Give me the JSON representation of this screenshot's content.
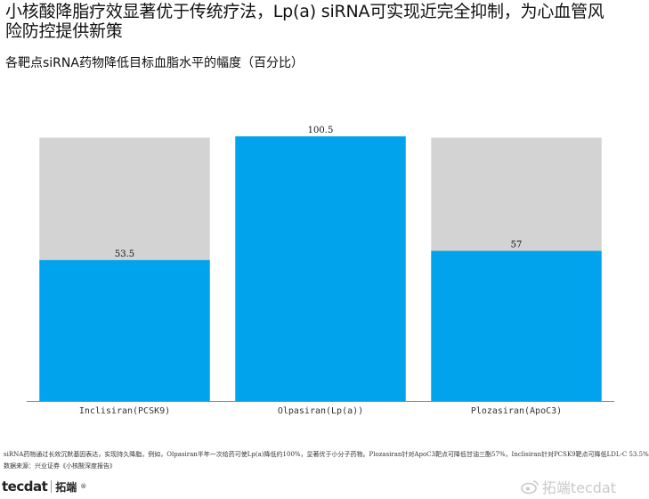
{
  "title": "小核酸降脂疗效显著优于传统疗法，Lp(a) siRNA可实现近完全抑制，为心血管风险防控提供新策",
  "subtitle": "各靶点siRNA药物降低目标血脂水平的幅度（百分比）",
  "chart_data": {
    "type": "bar",
    "categories": [
      "Inclisiran(PCSK9)",
      "Olpasiran(Lp(a))",
      "Plozasiran(ApoC3)"
    ],
    "series": [
      {
        "values": [
          53.5,
          100.5,
          57
        ],
        "color": "#00a3ec"
      }
    ],
    "data_labels": [
      "53.5",
      "100.5",
      "57"
    ],
    "background_bar_value": 100,
    "background_bar_color": "#d3d3d3",
    "ylim": [
      0,
      100.5
    ],
    "grid": false,
    "xlabel": "",
    "ylabel": ""
  },
  "footnote": "siRNA药物通过长效沉默基因表达，实现持久降脂，例如，Olpasiran半年一次给药可使Lp(a)降低约100%，显著优于小分子药物。Plozasiran针对ApoC3靶点可降低甘油三酯57%，Inclisiran针对PCSK9靶点可降低LDL-C 53.5%",
  "source": "数据来源：兴业证券《小核酸深度报告》",
  "brand": {
    "logo_text": "tecdat",
    "cn_name": "拓端",
    "mark": "®"
  },
  "watermark": {
    "text": "拓端tecdat"
  }
}
